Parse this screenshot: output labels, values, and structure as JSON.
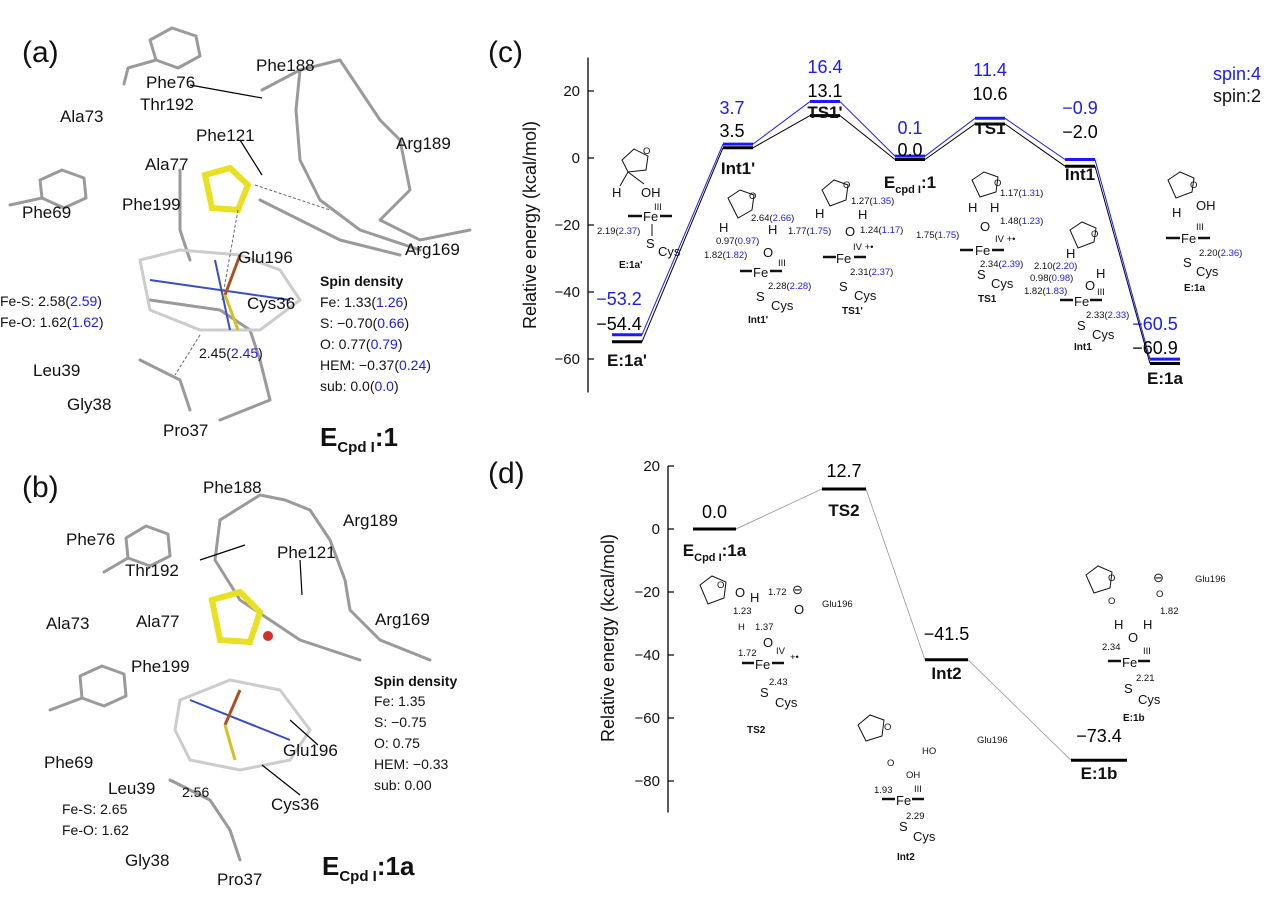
{
  "panel_a": {
    "label": "(a)",
    "residues": [
      "Phe76",
      "Ala73",
      "Phe188",
      "Thr192",
      "Phe121",
      "Ala77",
      "Arg189",
      "Phe69",
      "Phe199",
      "Glu196",
      "Arg169",
      "Cys36",
      "Leu39",
      "Gly38",
      "Pro37"
    ],
    "fe_s": "Fe-S: 2.58(2.59)",
    "fe_o": "Fe-O: 1.62(1.62)",
    "hbond": "2.45(2.45)",
    "spin_title": "Spin density",
    "spin": [
      "Fe: 1.33(1.26)",
      "S: −0.70(0.66)",
      "O: 0.77(0.79)",
      "HEM: −0.37(0.24)",
      "sub: 0.0(0.0)"
    ],
    "title_main": "E",
    "title_sub": "Cpd I",
    "title_suffix": ":1"
  },
  "panel_b": {
    "label": "(b)",
    "residues": [
      "Phe188",
      "Phe76",
      "Arg189",
      "Thr192",
      "Phe121",
      "Ala73",
      "Ala77",
      "Arg169",
      "Phe199",
      "Phe69",
      "Glu196",
      "Leu39",
      "Cys36",
      "Gly38",
      "Pro37"
    ],
    "fe_s": "Fe-S:  2.65",
    "fe_o": "Fe-O: 1.62",
    "hbond": "2.56",
    "spin_title": "Spin density",
    "spin": [
      "Fe: 1.35",
      "S: −0.75",
      "O: 0.75",
      "HEM: −0.33",
      "sub: 0.00"
    ],
    "title_main": "E",
    "title_sub": "Cpd I",
    "title_suffix": ":1a"
  },
  "panel_c": {
    "label": "(c)",
    "legend": [
      {
        "name": "spin:4",
        "color": "#1a1aff"
      },
      {
        "name": "spin:2",
        "color": "#000000"
      }
    ],
    "insets": {
      "e1a_prime": [
        "H",
        "OH",
        "III",
        "Fe",
        "2.19(2.37)",
        "S",
        "Cys",
        "E:1a'",
        "O"
      ],
      "int1_prime": [
        "2.64(2.66)",
        "H",
        "H",
        "0.97(0.97)",
        "1.82(1.82)",
        "O",
        "III",
        "Fe",
        "2.28(2.28)",
        "S",
        "Cys",
        "Int1'",
        "O"
      ],
      "ts1_prime": [
        "1.27(1.35)",
        "H",
        "H",
        "1.24(1.17)",
        "1.77(1.75)",
        "O",
        "IV +•",
        "Fe",
        "2.31(2.37)",
        "S",
        "Cys",
        "TS1'",
        "O"
      ],
      "ts1": [
        "1.17(1.31)",
        "H",
        "H",
        "1.48(1.23)",
        "1.75(1.75)",
        "O",
        "IV +•",
        "Fe",
        "2.34(2.39)",
        "S",
        "Cys",
        "TS1",
        "O"
      ],
      "int1": [
        "2.10(2.20)",
        "0.98(0.98)",
        "H",
        "H",
        "O",
        "1.82(1.83)",
        "III",
        "Fe",
        "2.33(2.33)",
        "S",
        "Cys",
        "Int1",
        "O"
      ],
      "e1a": [
        "H",
        "OH",
        "III",
        "Fe",
        "2.20(2.36)",
        "S",
        "Cys",
        "E:1a",
        "O"
      ]
    }
  },
  "panel_d": {
    "label": "(d)",
    "insets": {
      "ts2": [
        "1.72",
        "⊖",
        "Glu196",
        "1.23",
        "H",
        "1.37",
        "O",
        "1.72",
        "IV",
        "+•",
        "Fe",
        "2.43",
        "S",
        "Cys",
        "TS2",
        "O",
        "H",
        "O",
        "O"
      ],
      "int2": [
        "O",
        "O",
        "HO",
        "Glu196",
        "OH",
        "1.93",
        "III",
        "Fe",
        "2.29",
        "S",
        "Cys",
        "Int2",
        "O"
      ],
      "e1b": [
        "O",
        "O",
        "⊖",
        "Glu196",
        "O",
        "1.82",
        "H",
        "H",
        "O",
        "2.34",
        "III",
        "Fe",
        "2.21",
        "S",
        "Cys",
        "E:1b",
        "O"
      ]
    }
  },
  "chart_data": [
    {
      "type": "line",
      "title": "",
      "ylabel": "Relative energy (kcal/mol)",
      "ylim": [
        -70,
        30
      ],
      "yticks": [
        20,
        0,
        -20,
        -40,
        -60
      ],
      "categories": [
        {
          "main": "E:1a'",
          "sub": "",
          "suffix": ""
        },
        {
          "main": "Int1'",
          "sub": "",
          "suffix": ""
        },
        {
          "main": "TS1'",
          "sub": "",
          "suffix": ""
        },
        {
          "main": "E",
          "sub": "cpd I",
          "suffix": ":1"
        },
        {
          "main": "TS1",
          "sub": "",
          "suffix": ""
        },
        {
          "main": "Int1",
          "sub": "",
          "suffix": ""
        },
        {
          "main": "E:1a",
          "sub": "",
          "suffix": ""
        }
      ],
      "series": [
        {
          "name": "spin:4",
          "color": "#1a1aff",
          "values": [
            -53.2,
            3.7,
            16.4,
            0.1,
            11.4,
            -0.9,
            -60.5
          ]
        },
        {
          "name": "spin:2",
          "color": "#000000",
          "values": [
            -54.4,
            3.5,
            13.1,
            0.0,
            10.6,
            -2.0,
            -60.9
          ]
        }
      ]
    },
    {
      "type": "line",
      "title": "",
      "ylabel": "Relative energy (kcal/mol)",
      "ylim": [
        -90,
        20
      ],
      "yticks": [
        20,
        0,
        -20,
        -40,
        -60,
        -80
      ],
      "categories": [
        {
          "main": "E",
          "sub": "Cpd I",
          "suffix": ":1a"
        },
        {
          "main": "TS2",
          "sub": "",
          "suffix": ""
        },
        {
          "main": "Int2",
          "sub": "",
          "suffix": ""
        },
        {
          "main": "E:1b",
          "sub": "",
          "suffix": ""
        }
      ],
      "series": [
        {
          "color": "#000000",
          "values": [
            0.0,
            12.7,
            -41.5,
            -73.4
          ]
        }
      ]
    }
  ]
}
